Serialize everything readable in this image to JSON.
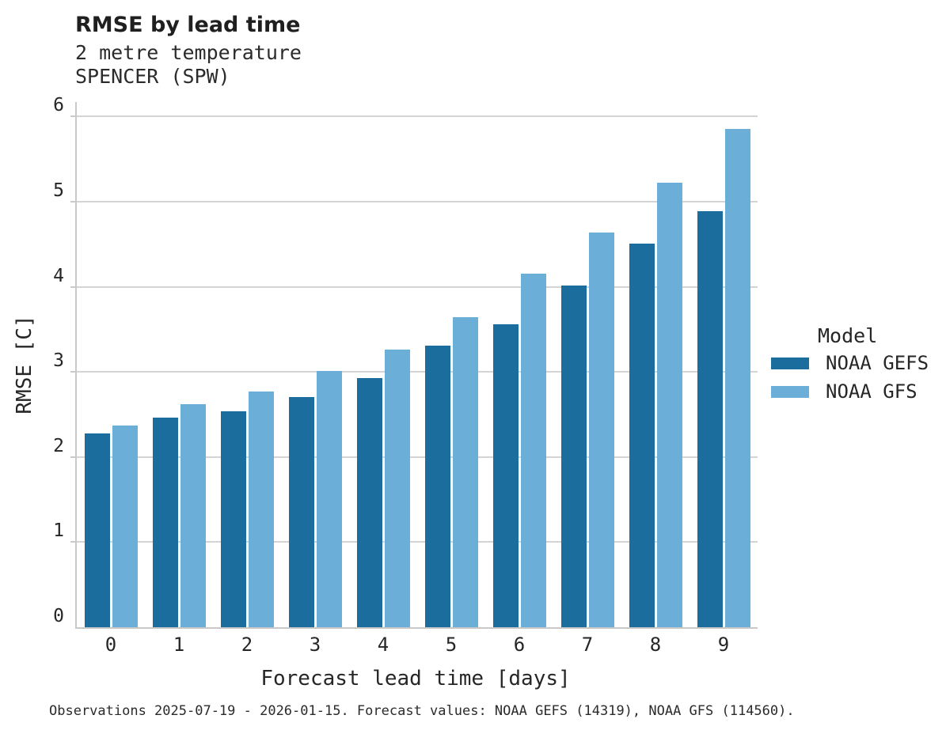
{
  "header": {
    "title": "RMSE by lead time",
    "subtitle_line1": "2 metre temperature",
    "subtitle_line2": "SPENCER (SPW)"
  },
  "legend": {
    "title": "Model",
    "entries": [
      {
        "label": "NOAA GEFS",
        "color": "#1b6d9e"
      },
      {
        "label": "NOAA GFS",
        "color": "#6bafd8"
      }
    ]
  },
  "footer": {
    "note": "Observations 2025-07-19 - 2026-01-15. Forecast values: NOAA GEFS (14319), NOAA GFS (114560)."
  },
  "colors": {
    "gefs_dark_blue": "#1b6d9e",
    "gfs_light_blue": "#6bafd8",
    "gridline_gray": "#d4d4d4",
    "spine_gray": "#c9c9c9",
    "text_dark": "#262626"
  },
  "chart_data": {
    "type": "bar",
    "title": "RMSE by lead time",
    "subtitle": [
      "2 metre temperature",
      "SPENCER (SPW)"
    ],
    "categories": [
      "0",
      "1",
      "2",
      "3",
      "4",
      "5",
      "6",
      "7",
      "8",
      "9"
    ],
    "series": [
      {
        "name": "NOAA GEFS",
        "color": "#1b6d9e",
        "values": [
          2.28,
          2.46,
          2.54,
          2.7,
          2.93,
          3.31,
          3.56,
          4.01,
          4.51,
          4.89
        ]
      },
      {
        "name": "NOAA GFS",
        "color": "#6bafd8",
        "values": [
          2.37,
          2.62,
          2.77,
          3.01,
          3.26,
          3.64,
          4.15,
          4.64,
          5.22,
          5.85
        ]
      }
    ],
    "xlabel": "Forecast lead time [days]",
    "ylabel": "RMSE [C]",
    "ylim": [
      0,
      6.17
    ],
    "yticks": [
      0,
      1,
      2,
      3,
      4,
      5,
      6
    ],
    "grid": "horizontal",
    "legend_title": "Model",
    "legend_position": "right"
  }
}
